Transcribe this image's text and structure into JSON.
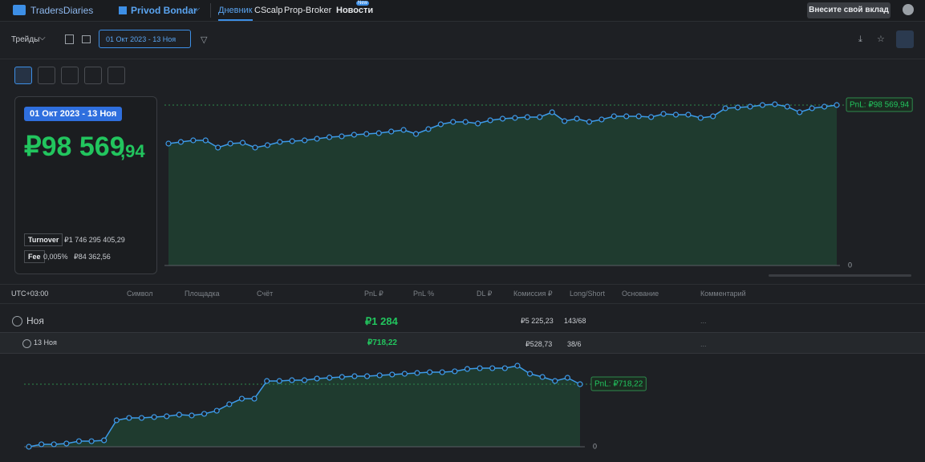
{
  "nav": {
    "brand": "TradersDiaries",
    "account": "Privod Bondar",
    "tabs": [
      "Дневник",
      "CScalp",
      "Prop-Broker",
      "Новости"
    ],
    "badge": "New",
    "button": "Внесите свой вклад"
  },
  "toolbar": {
    "trades": "Трейды",
    "date_range": "01 Окт 2023 - 13 Ноя"
  },
  "summary": {
    "date": "01 Окт 2023 - 13 Ноя",
    "pnl_main": "₽98 569",
    "pnl_cents": ",94",
    "turnover_label": "Turnover",
    "turnover": "₽1 746 295 405,29",
    "fee_label": "Fee",
    "fee_rate": "0,005%",
    "fee": "₽84 362,56"
  },
  "table": {
    "headers": [
      "UTC+03:00",
      "Символ",
      "Площадка",
      "Счёт",
      "PnL ₽",
      "PnL %",
      "DL ₽",
      "Комиссия ₽",
      "Long/Short",
      "Основание",
      "Комментарий"
    ],
    "rows": [
      [
        "Ноя",
        "₽1 284",
        "₽5 225,23",
        "143/68",
        "..."
      ],
      [
        "13 Ноя",
        "₽718,22",
        "₽528,73",
        "38/6",
        "..."
      ]
    ]
  },
  "chart_data": [
    {
      "type": "area",
      "color": "#3d9be9",
      "fill": "#1f3b2f",
      "values": [
        74913,
        75899,
        76885,
        76885,
        72449,
        74913,
        75406,
        72449,
        73928,
        75899,
        76392,
        76885,
        77870,
        78856,
        79349,
        80335,
        80827,
        81320,
        82306,
        83292,
        80827,
        83785,
        86742,
        88220,
        88220,
        87234,
        89206,
        90192,
        90684,
        91177,
        91177,
        94134,
        88713,
        90192,
        88220,
        89699,
        91670,
        91670,
        91670,
        91177,
        93149,
        92656,
        92656,
        90684,
        91670,
        96599,
        97091,
        97584,
        98570,
        99063,
        97584,
        94134,
        96599,
        97584,
        98569.94
      ],
      "ylim": [
        0,
        103000
      ],
      "yticks": [
        0
      ],
      "annotation": "PnL: ₽98 569,94"
    },
    {
      "type": "area",
      "color": "#3d9be9",
      "fill": "#1f3b2f",
      "values": [
        0,
        28,
        28,
        37,
        64,
        64,
        74,
        304,
        331,
        331,
        341,
        350,
        368,
        359,
        378,
        414,
        488,
        552,
        552,
        755,
        755,
        764,
        764,
        783,
        792,
        801,
        810,
        810,
        820,
        829,
        838,
        847,
        856,
        856,
        866,
        893,
        902,
        902,
        902,
        930,
        838,
        801,
        755,
        792,
        718.22
      ],
      "ylim": [
        0,
        1000
      ],
      "yticks": [
        0
      ],
      "annotation": "PnL: ₽718,22"
    }
  ]
}
